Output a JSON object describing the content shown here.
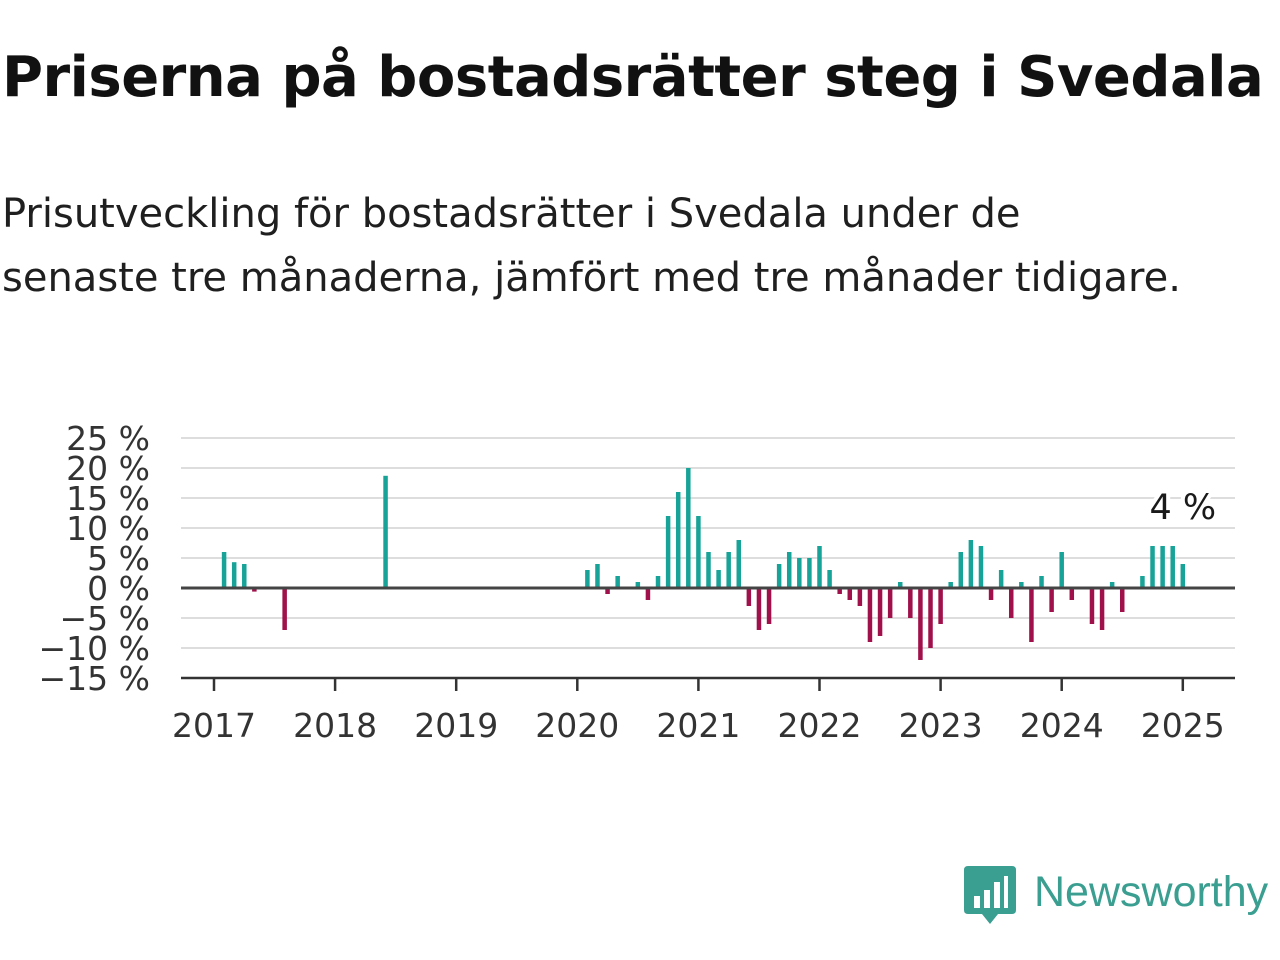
{
  "header": {
    "title": "Priserna på bostadsrätter steg i Svedala",
    "subtitle": "Prisutveckling för bostadsrätter i Svedala under de senaste tre månaderna, jämfört med tre månader tidigare."
  },
  "brand": {
    "name": "Newsworthy",
    "icon": "newsworthy-logo-icon",
    "color": "#3a9e90"
  },
  "colors": {
    "positive": "#17a398",
    "negative": "#a0104a",
    "grid": "#dddddd",
    "zero_line": "#444444"
  },
  "chart_data": {
    "type": "bar",
    "title": "",
    "xlabel": "",
    "ylabel": "",
    "ylim": [
      -15,
      25
    ],
    "y_ticks": [
      25,
      20,
      15,
      10,
      5,
      0,
      -5,
      -10,
      -15
    ],
    "y_tick_labels": [
      "25 %",
      "20 %",
      "15 %",
      "10 %",
      "5 %",
      "0 %",
      "−5 %",
      "−10 %",
      "−15 %"
    ],
    "x_ticks": [
      "2017",
      "2018",
      "2019",
      "2020",
      "2021",
      "2022",
      "2023",
      "2024",
      "2025"
    ],
    "grid": true,
    "annotation": {
      "label": "4 %",
      "date": "2025-01",
      "value": 4
    },
    "series": [
      {
        "points": [
          {
            "date": "2017-02",
            "value": 6
          },
          {
            "date": "2017-03",
            "value": 4.3
          },
          {
            "date": "2017-04",
            "value": 4
          },
          {
            "date": "2017-05",
            "value": -0.6
          },
          {
            "date": "2017-08",
            "value": -7
          },
          {
            "date": "2018-06",
            "value": 18.7
          },
          {
            "date": "2020-02",
            "value": 3
          },
          {
            "date": "2020-03",
            "value": 4
          },
          {
            "date": "2020-04",
            "value": -1
          },
          {
            "date": "2020-05",
            "value": 2
          },
          {
            "date": "2020-07",
            "value": 1
          },
          {
            "date": "2020-08",
            "value": -2
          },
          {
            "date": "2020-09",
            "value": 2
          },
          {
            "date": "2020-10",
            "value": 12
          },
          {
            "date": "2020-11",
            "value": 16
          },
          {
            "date": "2020-12",
            "value": 20
          },
          {
            "date": "2021-01",
            "value": 12
          },
          {
            "date": "2021-02",
            "value": 6
          },
          {
            "date": "2021-03",
            "value": 3
          },
          {
            "date": "2021-04",
            "value": 6
          },
          {
            "date": "2021-05",
            "value": 8
          },
          {
            "date": "2021-06",
            "value": -3
          },
          {
            "date": "2021-07",
            "value": -7
          },
          {
            "date": "2021-08",
            "value": -6
          },
          {
            "date": "2021-09",
            "value": 4
          },
          {
            "date": "2021-10",
            "value": 6
          },
          {
            "date": "2021-11",
            "value": 5
          },
          {
            "date": "2021-12",
            "value": 5
          },
          {
            "date": "2022-01",
            "value": 7
          },
          {
            "date": "2022-02",
            "value": 3
          },
          {
            "date": "2022-03",
            "value": -1
          },
          {
            "date": "2022-04",
            "value": -2
          },
          {
            "date": "2022-05",
            "value": -3
          },
          {
            "date": "2022-06",
            "value": -9
          },
          {
            "date": "2022-07",
            "value": -8
          },
          {
            "date": "2022-08",
            "value": -5
          },
          {
            "date": "2022-09",
            "value": 1
          },
          {
            "date": "2022-10",
            "value": -5
          },
          {
            "date": "2022-11",
            "value": -12
          },
          {
            "date": "2022-12",
            "value": -10
          },
          {
            "date": "2023-01",
            "value": -6
          },
          {
            "date": "2023-02",
            "value": 1
          },
          {
            "date": "2023-03",
            "value": 6
          },
          {
            "date": "2023-04",
            "value": 8
          },
          {
            "date": "2023-05",
            "value": 7
          },
          {
            "date": "2023-06",
            "value": -2
          },
          {
            "date": "2023-07",
            "value": 3
          },
          {
            "date": "2023-08",
            "value": -5
          },
          {
            "date": "2023-09",
            "value": 1
          },
          {
            "date": "2023-10",
            "value": -9
          },
          {
            "date": "2023-11",
            "value": 2
          },
          {
            "date": "2023-12",
            "value": -4
          },
          {
            "date": "2024-01",
            "value": 6
          },
          {
            "date": "2024-02",
            "value": -2
          },
          {
            "date": "2024-04",
            "value": -6
          },
          {
            "date": "2024-05",
            "value": -7
          },
          {
            "date": "2024-06",
            "value": 1
          },
          {
            "date": "2024-07",
            "value": -4
          },
          {
            "date": "2024-09",
            "value": 2
          },
          {
            "date": "2024-10",
            "value": 7
          },
          {
            "date": "2024-11",
            "value": 7
          },
          {
            "date": "2024-12",
            "value": 7
          },
          {
            "date": "2025-01",
            "value": 4
          }
        ]
      }
    ]
  }
}
